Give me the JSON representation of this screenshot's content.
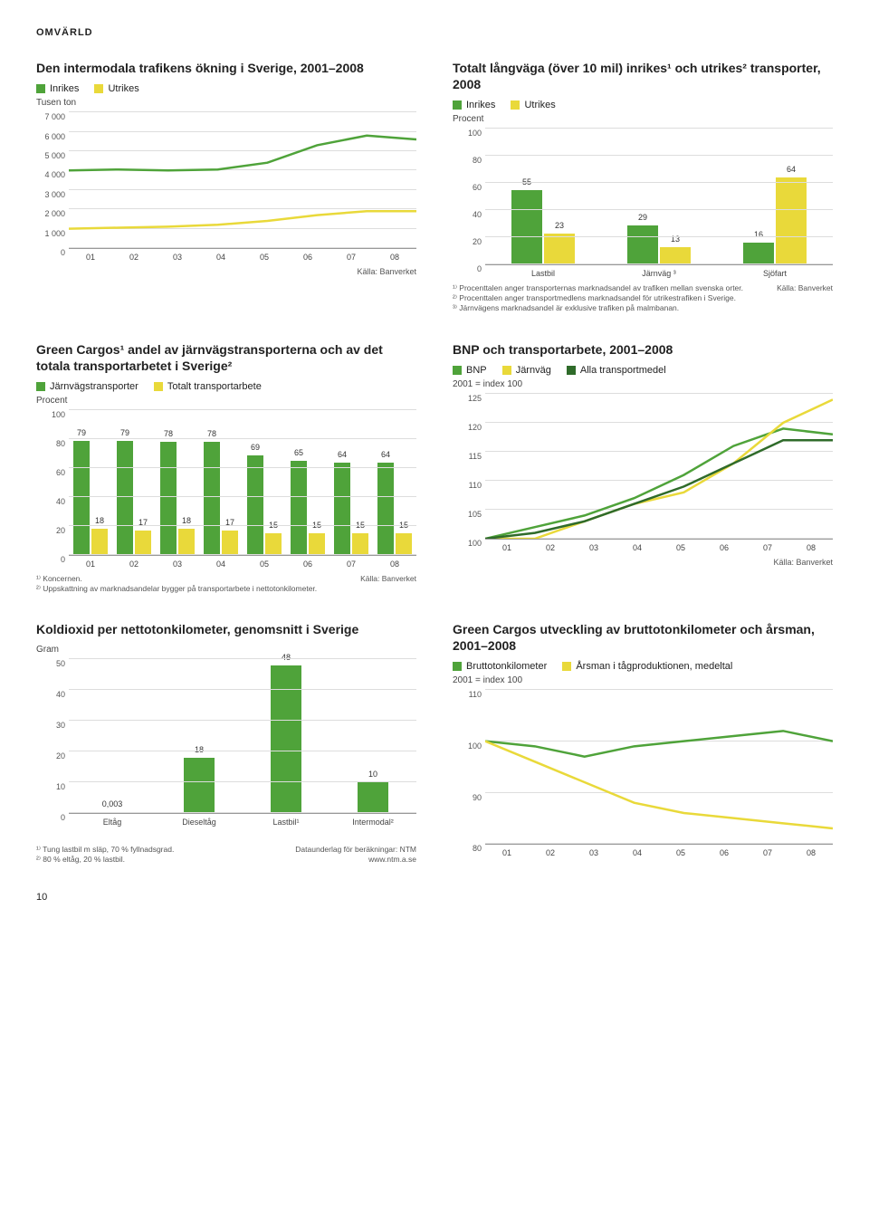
{
  "section_label": "OMVÄRLD",
  "colors": {
    "green": "#4fa33a",
    "yellow": "#e9d93a",
    "darkgreen": "#2f6b2a",
    "grid": "#dddddd",
    "axis": "#999999"
  },
  "page_number": "10",
  "chart1": {
    "title": "Den intermodala trafikens ökning i Sverige, 2001–2008",
    "legend": [
      {
        "label": "Inrikes",
        "color": "#4fa33a"
      },
      {
        "label": "Utrikes",
        "color": "#e9d93a"
      }
    ],
    "y_unit": "Tusen ton",
    "ymax": 7000,
    "yticks": [
      0,
      1000,
      2000,
      3000,
      4000,
      5000,
      6000,
      7000
    ],
    "ytick_labels": [
      "0",
      "1 000",
      "2 000",
      "3 000",
      "4 000",
      "5 000",
      "6 000",
      "7 000"
    ],
    "xticks": [
      "01",
      "02",
      "03",
      "04",
      "05",
      "06",
      "07",
      "08"
    ],
    "series": [
      {
        "color": "#4fa33a",
        "values": [
          4000,
          4050,
          4000,
          4050,
          4400,
          5300,
          5800,
          5600
        ]
      },
      {
        "color": "#e9d93a",
        "values": [
          1000,
          1050,
          1100,
          1200,
          1400,
          1700,
          1900,
          1900
        ]
      }
    ],
    "source": "Källa: Banverket"
  },
  "chart2": {
    "title": "Totalt långväga (över 10 mil) inrikes¹ och utrikes² transporter, 2008",
    "legend": [
      {
        "label": "Inrikes",
        "color": "#4fa33a"
      },
      {
        "label": "Utrikes",
        "color": "#e9d93a"
      }
    ],
    "y_unit": "Procent",
    "ymax": 100,
    "yticks": [
      0,
      20,
      40,
      60,
      80,
      100
    ],
    "categories": [
      "Lastbil",
      "Järnväg ³",
      "Sjöfart"
    ],
    "data": [
      {
        "inrikes": 55,
        "utrikes": 23
      },
      {
        "inrikes": 29,
        "utrikes": 13
      },
      {
        "inrikes": 16,
        "utrikes": 64
      }
    ],
    "footnotes": [
      "¹⁾ Procenttalen anger transporternas marknadsandel av trafiken mellan svenska orter.",
      "²⁾ Procenttalen anger transportmedlens marknadsandel för utrikestrafiken i Sverige.",
      "³⁾ Järnvägens marknadsandel är exklusive trafiken på malmbanan."
    ],
    "source": "Källa: Banverket"
  },
  "chart3": {
    "title": "Green Cargos¹ andel av järnvägstransporterna och av det totala transportarbetet i Sverige²",
    "legend": [
      {
        "label": "Järnvägstransporter",
        "color": "#4fa33a"
      },
      {
        "label": "Totalt transportarbete",
        "color": "#e9d93a"
      }
    ],
    "y_unit": "Procent",
    "ymax": 100,
    "yticks": [
      0,
      20,
      40,
      60,
      80,
      100
    ],
    "xticks": [
      "01",
      "02",
      "03",
      "04",
      "05",
      "06",
      "07",
      "08"
    ],
    "data": [
      {
        "g": 79,
        "y": 18
      },
      {
        "g": 79,
        "y": 17
      },
      {
        "g": 78,
        "y": 18
      },
      {
        "g": 78,
        "y": 17
      },
      {
        "g": 69,
        "y": 15
      },
      {
        "g": 65,
        "y": 15
      },
      {
        "g": 64,
        "y": 15
      },
      {
        "g": 64,
        "y": 15
      }
    ],
    "footnotes": [
      "¹⁾ Koncernen.",
      "²⁾ Uppskattning av marknadsandelar bygger på transportarbete i nettotonkilometer."
    ],
    "source": "Källa: Banverket"
  },
  "chart4": {
    "title": "BNP och transportarbete, 2001–2008",
    "legend": [
      {
        "label": "BNP",
        "color": "#4fa33a"
      },
      {
        "label": "Järnväg",
        "color": "#e9d93a"
      },
      {
        "label": "Alla transportmedel",
        "color": "#2f6b2a"
      }
    ],
    "y_unit": "2001 = index 100",
    "ymin": 100,
    "ymax": 125,
    "yticks": [
      100,
      105,
      110,
      115,
      120,
      125
    ],
    "xticks": [
      "01",
      "02",
      "03",
      "04",
      "05",
      "06",
      "07",
      "08"
    ],
    "series": [
      {
        "color": "#4fa33a",
        "values": [
          100,
          102,
          104,
          107,
          111,
          116,
          119,
          118
        ]
      },
      {
        "color": "#e9d93a",
        "values": [
          100,
          100,
          103,
          106,
          108,
          113,
          120,
          124
        ]
      },
      {
        "color": "#2f6b2a",
        "values": [
          100,
          101,
          103,
          106,
          109,
          113,
          117,
          117
        ]
      }
    ],
    "source": "Källa: Banverket"
  },
  "chart5": {
    "title": "Koldioxid per nettotonkilometer, genomsnitt i Sverige",
    "y_unit": "Gram",
    "ymax": 50,
    "yticks": [
      0,
      10,
      20,
      30,
      40,
      50
    ],
    "categories": [
      "Eltåg",
      "Dieseltåg",
      "Lastbil¹",
      "Intermodal²"
    ],
    "values": [
      0.003,
      18,
      48,
      10
    ],
    "display_labels": [
      "0,003",
      "18",
      "48",
      "10"
    ],
    "color": "#4fa33a",
    "footnotes": [
      "¹⁾ Tung lastbil m släp, 70 % fyllnadsgrad.",
      "²⁾ 80 % eltåg, 20 % lastbil."
    ],
    "source_left": "Dataunderlag för beräkningar: NTM",
    "source_right": "www.ntm.a.se"
  },
  "chart6": {
    "title": "Green Cargos utveckling av bruttotonkilometer och årsman, 2001–2008",
    "legend": [
      {
        "label": "Bruttotonkilometer",
        "color": "#4fa33a"
      },
      {
        "label": "Årsman i tågproduktionen, medeltal",
        "color": "#e9d93a"
      }
    ],
    "y_unit": "2001 = index 100",
    "ymin": 80,
    "ymax": 110,
    "yticks": [
      80,
      90,
      100,
      110
    ],
    "xticks": [
      "01",
      "02",
      "03",
      "04",
      "05",
      "06",
      "07",
      "08"
    ],
    "series": [
      {
        "color": "#4fa33a",
        "values": [
          100,
          99,
          97,
          99,
          100,
          101,
          102,
          100
        ]
      },
      {
        "color": "#e9d93a",
        "values": [
          100,
          96,
          92,
          88,
          86,
          85,
          84,
          83
        ]
      }
    ]
  }
}
